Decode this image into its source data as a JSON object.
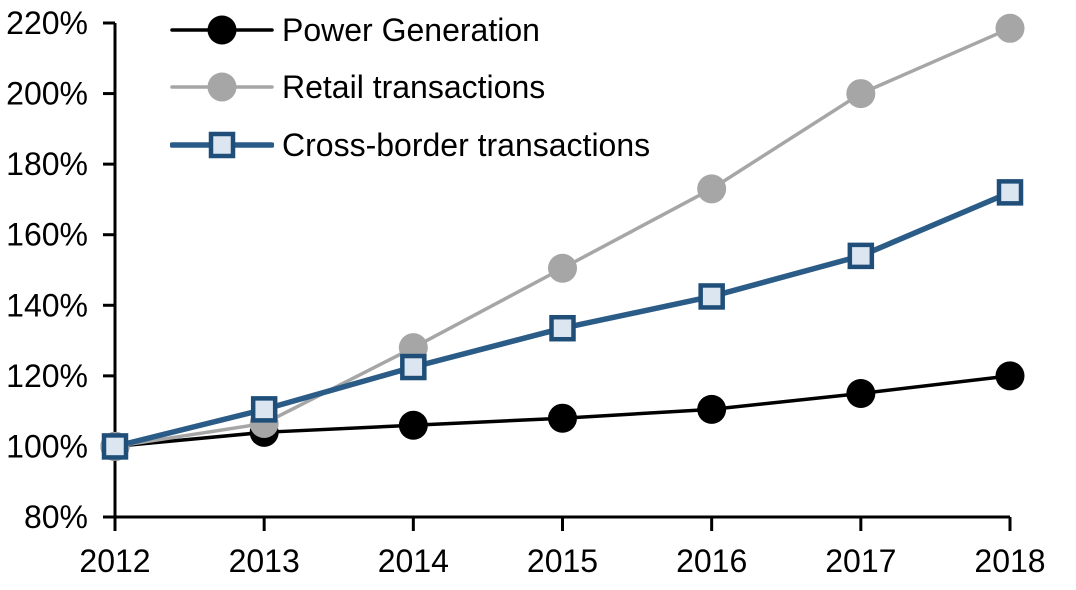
{
  "chart_data": {
    "type": "line",
    "title": "",
    "x": [
      "2012",
      "2013",
      "2014",
      "2015",
      "2016",
      "2017",
      "2018"
    ],
    "series": [
      {
        "name": "Power Generation",
        "values": [
          100,
          104,
          106,
          108,
          110.5,
          115,
          120
        ],
        "color": "#000000",
        "line_width": 3.5,
        "marker": "circle",
        "marker_fill": "#000000",
        "marker_stroke": "#000000"
      },
      {
        "name": "Retail transactions",
        "values": [
          100,
          106.5,
          128,
          150.5,
          173,
          200,
          218.5
        ],
        "color": "#A6A6A6",
        "line_width": 3.5,
        "marker": "circle",
        "marker_fill": "#A6A6A6",
        "marker_stroke": "#A6A6A6"
      },
      {
        "name": "Cross-border transactions",
        "values": [
          100,
          110.5,
          122.5,
          133.5,
          142.5,
          154,
          172
        ],
        "color": "#2B5C87",
        "line_width": 5.5,
        "marker": "square",
        "marker_fill": "#DCE6F1",
        "marker_stroke": "#1F4E79"
      }
    ],
    "ylim": [
      80,
      220
    ],
    "ytick_step": 20,
    "ytick_labels": [
      "80%",
      "100%",
      "120%",
      "140%",
      "160%",
      "180%",
      "200%",
      "220%"
    ],
    "xtick_labels": [
      "2012",
      "2013",
      "2014",
      "2015",
      "2016",
      "2017",
      "2018"
    ],
    "xlabel": "",
    "ylabel": "",
    "grid": false,
    "legend_position": "top-left",
    "axis_color": "#000000",
    "background": "#FFFFFF"
  }
}
